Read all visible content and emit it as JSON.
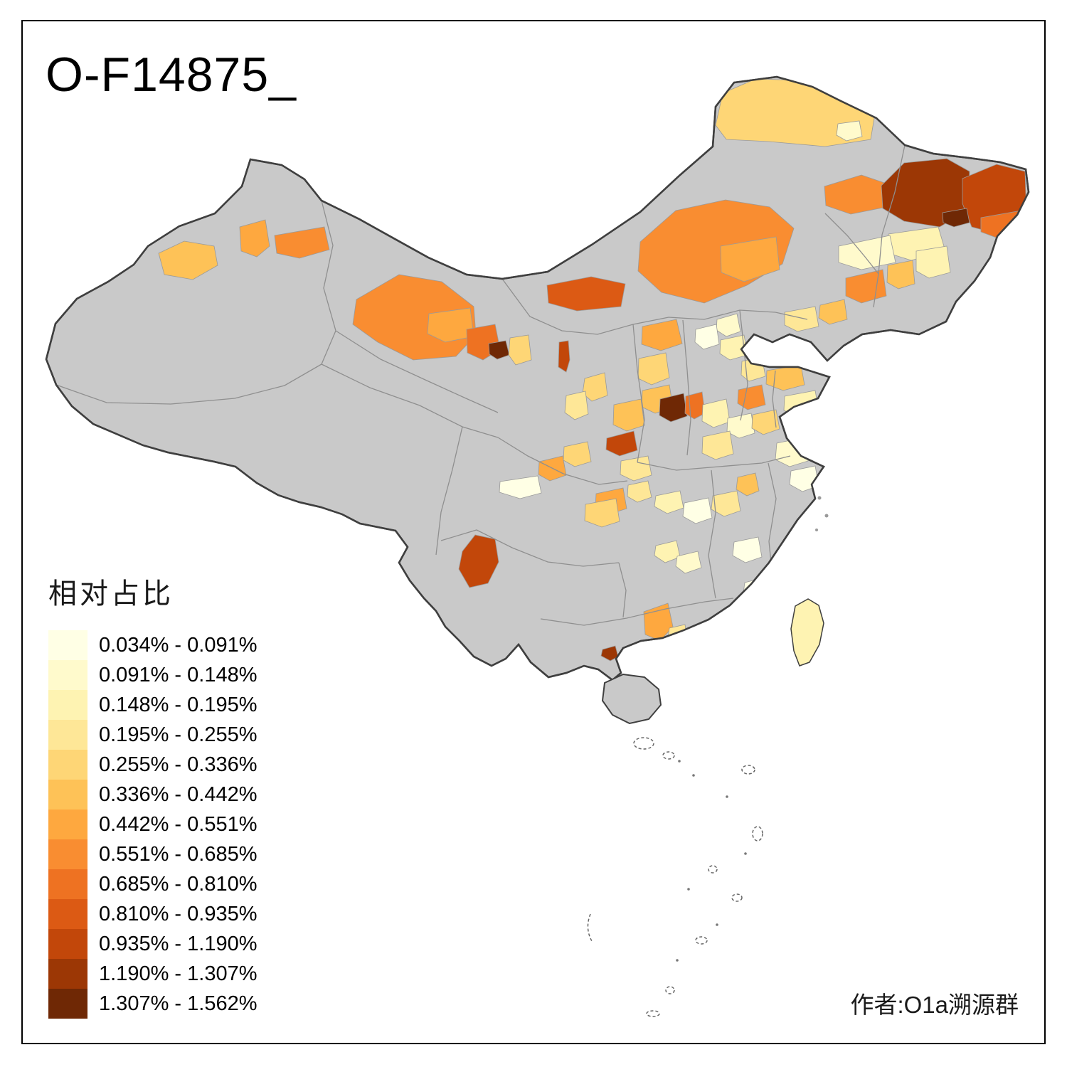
{
  "title": "O-F14875_",
  "attribution": "作者:O1a溯源群",
  "legend": {
    "title": "相对占比",
    "bins": [
      {
        "label": "0.034% - 0.091%",
        "color": "#FFFFE5"
      },
      {
        "label": "0.091% - 0.148%",
        "color": "#FFFACC"
      },
      {
        "label": "0.148% - 0.195%",
        "color": "#FEF3B2"
      },
      {
        "label": "0.195% - 0.255%",
        "color": "#FEE797"
      },
      {
        "label": "0.255% - 0.336%",
        "color": "#FED676"
      },
      {
        "label": "0.336% - 0.442%",
        "color": "#FEC257"
      },
      {
        "label": "0.442% - 0.551%",
        "color": "#FEA83F"
      },
      {
        "label": "0.551% - 0.685%",
        "color": "#F98D31"
      },
      {
        "label": "0.685% - 0.810%",
        "color": "#EE7222"
      },
      {
        "label": "0.810% - 0.935%",
        "color": "#DC5A14"
      },
      {
        "label": "0.935% - 1.190%",
        "color": "#C2470A"
      },
      {
        "label": "1.190% - 1.307%",
        "color": "#9C3705"
      },
      {
        "label": "1.307% - 1.562%",
        "color": "#6F2805"
      }
    ]
  },
  "map": {
    "base_color": "#C9C9C9",
    "outline_color": "#3F3F3F",
    "province_border_color": "#8F8F8F",
    "region_border_color": "#9A9A9A",
    "sea_feature_color": "#666666",
    "regions": [
      {
        "id": "xj-ili",
        "bin": 5
      },
      {
        "id": "xj-shihezi",
        "bin": 6
      },
      {
        "id": "xj-changji",
        "bin": 7
      },
      {
        "id": "gansu-hexi",
        "bin": 7
      },
      {
        "id": "gansu-jinchang",
        "bin": 6
      },
      {
        "id": "gansu-east",
        "bin": 8
      },
      {
        "id": "gansu-dark",
        "bin": 12
      },
      {
        "id": "gansu-baiyin",
        "bin": 4
      },
      {
        "id": "ningxia-yinchuan",
        "bin": 10
      },
      {
        "id": "ningxia-guyuan",
        "bin": 4
      },
      {
        "id": "gansu-linxia",
        "bin": 3
      },
      {
        "id": "im-bayannur",
        "bin": 9
      },
      {
        "id": "im-xilingol",
        "bin": 7
      },
      {
        "id": "im-chifeng",
        "bin": 6
      },
      {
        "id": "im-hulunbuir",
        "bin": 4
      },
      {
        "id": "im-hulunbuir-pale",
        "bin": 1
      },
      {
        "id": "nen-qiqihar",
        "bin": 7
      },
      {
        "id": "hlj-dark-west",
        "bin": 11
      },
      {
        "id": "hlj-dark-east",
        "bin": 10
      },
      {
        "id": "hlj-darkest",
        "bin": 12
      },
      {
        "id": "hlj-shuangyashan",
        "bin": 8
      },
      {
        "id": "hlj-harbin-pale",
        "bin": 2
      },
      {
        "id": "hlj-suihua-pale",
        "bin": 1
      },
      {
        "id": "jl-changchun",
        "bin": 7
      },
      {
        "id": "jl-mid",
        "bin": 5
      },
      {
        "id": "jl-yanbian-pale",
        "bin": 2
      },
      {
        "id": "ln-shenyang",
        "bin": 5
      },
      {
        "id": "ln-dalian-pale",
        "bin": 3
      },
      {
        "id": "beijing",
        "bin": 1
      },
      {
        "id": "hebei-north",
        "bin": 0
      },
      {
        "id": "hebei-mid",
        "bin": 2
      },
      {
        "id": "hebei-south",
        "bin": 3
      },
      {
        "id": "shijiazhuang",
        "bin": 7
      },
      {
        "id": "shanxi-north",
        "bin": 6
      },
      {
        "id": "shanxi-mid",
        "bin": 4
      },
      {
        "id": "shanxi-south",
        "bin": 5
      },
      {
        "id": "shaanxi-darkest",
        "bin": 12
      },
      {
        "id": "shanxi-linfen",
        "bin": 8
      },
      {
        "id": "henan-north",
        "bin": 2
      },
      {
        "id": "henan-east",
        "bin": 1
      },
      {
        "id": "henan-south",
        "bin": 3
      },
      {
        "id": "shandong-west",
        "bin": 5
      },
      {
        "id": "shandong-peninsula-pale",
        "bin": 2
      },
      {
        "id": "jinan",
        "bin": 4
      },
      {
        "id": "yanan-dark",
        "bin": 10
      },
      {
        "id": "shaanxi-mid",
        "bin": 5
      },
      {
        "id": "guanzhong",
        "bin": 3
      },
      {
        "id": "gansu-tianshui",
        "bin": 6
      },
      {
        "id": "gansu-longnan",
        "bin": 4
      },
      {
        "id": "hanzhong",
        "bin": 6
      },
      {
        "id": "sichuan-ne",
        "bin": 3
      },
      {
        "id": "chengdu-pale",
        "bin": 0
      },
      {
        "id": "sichuan-east",
        "bin": 4
      },
      {
        "id": "hubei-west",
        "bin": 2
      },
      {
        "id": "hubei-mid",
        "bin": 0
      },
      {
        "id": "wuhan",
        "bin": 3
      },
      {
        "id": "anhui-hefei",
        "bin": 5
      },
      {
        "id": "jiangsu-pale",
        "bin": 1
      },
      {
        "id": "shanghai-pale",
        "bin": 0
      },
      {
        "id": "hunan-north",
        "bin": 2
      },
      {
        "id": "hunan-mid",
        "bin": 1
      },
      {
        "id": "jiangxi-pale",
        "bin": 0
      },
      {
        "id": "fujian-pale",
        "bin": 0
      },
      {
        "id": "yunnan-dali",
        "bin": 10
      },
      {
        "id": "guangxi-nanning",
        "bin": 6
      },
      {
        "id": "guangxi-east-pale",
        "bin": 3
      },
      {
        "id": "leizhou-dark",
        "bin": 11
      },
      {
        "id": "taiwan",
        "bin": 2
      }
    ]
  }
}
